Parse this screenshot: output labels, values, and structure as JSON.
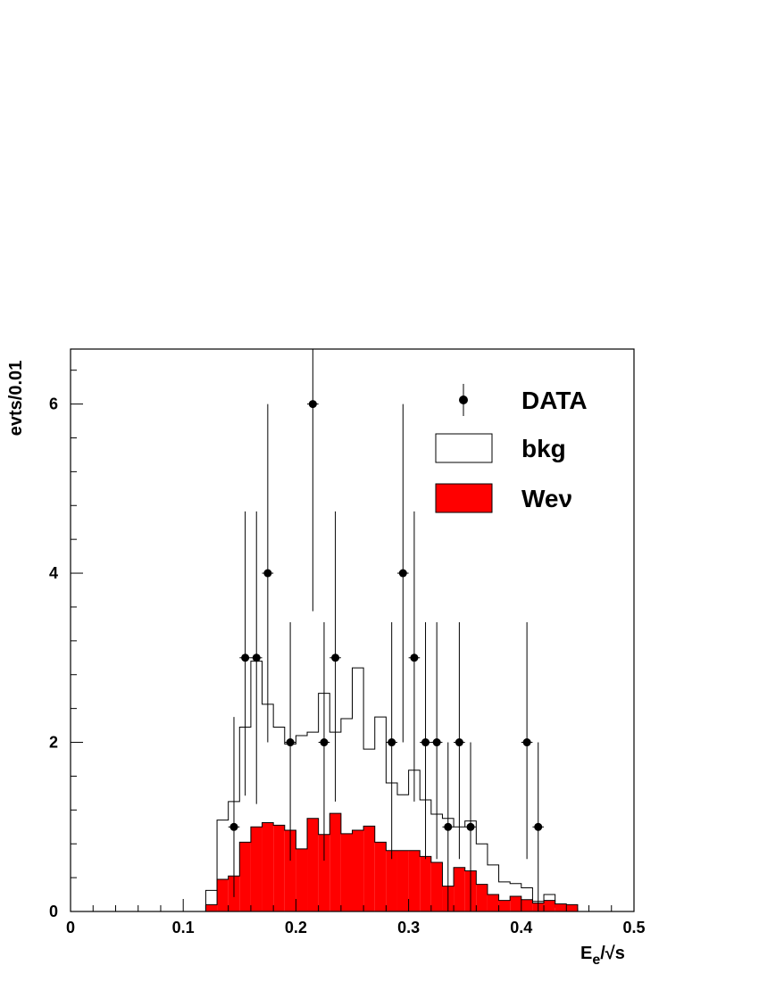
{
  "chart_data": {
    "type": "bar",
    "xlabel_main": "E",
    "xlabel_sub": "e",
    "xlabel_rest": "/√s",
    "ylabel": "evts/0.01",
    "xlim": [
      0,
      0.5
    ],
    "ylim": [
      0,
      6.65
    ],
    "x_ticks": [
      0,
      0.1,
      0.2,
      0.3,
      0.4,
      0.5
    ],
    "x_tick_labels": [
      "0",
      "0.1",
      "0.2",
      "0.3",
      "0.4",
      "0.5"
    ],
    "y_ticks": [
      0,
      2,
      4,
      6
    ],
    "y_tick_labels": [
      "0",
      "2",
      "4",
      "6"
    ],
    "legend": [
      "DATA",
      "bkg",
      "Weν"
    ],
    "legend_placement": "top-right",
    "colors": {
      "signal": "#ff0000",
      "bkg": "#ffffff",
      "data": "#000000"
    },
    "bin_edges": [
      0.12,
      0.13,
      0.14,
      0.15,
      0.16,
      0.17,
      0.18,
      0.19,
      0.2,
      0.21,
      0.22,
      0.23,
      0.24,
      0.25,
      0.26,
      0.27,
      0.28,
      0.29,
      0.3,
      0.31,
      0.32,
      0.33,
      0.34,
      0.35,
      0.36,
      0.37,
      0.38,
      0.39,
      0.4,
      0.41,
      0.42,
      0.43,
      0.44,
      0.45
    ],
    "series": [
      {
        "name": "bkg",
        "values": [
          0.25,
          1.08,
          1.3,
          2.18,
          2.96,
          2.45,
          2.18,
          1.98,
          2.08,
          2.12,
          2.58,
          2.12,
          2.28,
          2.88,
          1.92,
          2.3,
          1.52,
          1.38,
          1.67,
          1.32,
          1.15,
          1.1,
          1.0,
          1.07,
          0.8,
          0.55,
          0.35,
          0.33,
          0.28,
          0.12,
          0.2,
          0.05,
          0.03
        ]
      },
      {
        "name": "Weν",
        "values": [
          0.08,
          0.38,
          0.42,
          0.82,
          1.0,
          1.05,
          1.02,
          0.96,
          0.74,
          1.1,
          0.91,
          1.16,
          0.92,
          0.96,
          1.01,
          0.82,
          0.72,
          0.72,
          0.72,
          0.65,
          0.58,
          0.3,
          0.52,
          0.48,
          0.32,
          0.2,
          0.13,
          0.18,
          0.14,
          0.1,
          0.13,
          0.09,
          0.08
        ]
      }
    ],
    "data_points": [
      {
        "x": 0.145,
        "y": 1,
        "lo": 0.17,
        "hi": 2.3
      },
      {
        "x": 0.155,
        "y": 3,
        "lo": 1.37,
        "hi": 4.73
      },
      {
        "x": 0.165,
        "y": 3,
        "lo": 1.27,
        "hi": 4.73
      },
      {
        "x": 0.175,
        "y": 4,
        "lo": 2.0,
        "hi": 6.0
      },
      {
        "x": 0.195,
        "y": 2,
        "lo": 0.6,
        "hi": 3.42
      },
      {
        "x": 0.215,
        "y": 6,
        "lo": 3.55,
        "hi": 6.65
      },
      {
        "x": 0.225,
        "y": 2,
        "lo": 0.6,
        "hi": 3.42
      },
      {
        "x": 0.235,
        "y": 3,
        "lo": 1.3,
        "hi": 4.73
      },
      {
        "x": 0.285,
        "y": 2,
        "lo": 0.62,
        "hi": 3.42
      },
      {
        "x": 0.295,
        "y": 4,
        "lo": 2.0,
        "hi": 6.0
      },
      {
        "x": 0.305,
        "y": 3,
        "lo": 1.3,
        "hi": 4.73
      },
      {
        "x": 0.315,
        "y": 2,
        "lo": 0.62,
        "hi": 3.42
      },
      {
        "x": 0.325,
        "y": 2,
        "lo": 0.62,
        "hi": 3.42
      },
      {
        "x": 0.335,
        "y": 1,
        "lo": 0.0,
        "hi": 2.0
      },
      {
        "x": 0.345,
        "y": 2,
        "lo": 0.62,
        "hi": 3.42
      },
      {
        "x": 0.355,
        "y": 1,
        "lo": 0.0,
        "hi": 2.0
      },
      {
        "x": 0.405,
        "y": 2,
        "lo": 0.62,
        "hi": 3.42
      },
      {
        "x": 0.415,
        "y": 1,
        "lo": 0.0,
        "hi": 2.0
      }
    ]
  }
}
